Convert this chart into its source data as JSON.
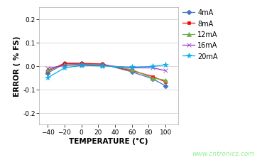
{
  "xlabel": "TEMPERATURE (°C)",
  "ylabel": "ERROR ( % FS)",
  "watermark": "www.cntronics.com",
  "xlim": [
    -50,
    115
  ],
  "ylim": [
    -0.25,
    0.25
  ],
  "xticks": [
    -40,
    -20,
    0,
    20,
    40,
    60,
    80,
    100
  ],
  "yticks": [
    -0.2,
    -0.1,
    0.0,
    0.1,
    0.2
  ],
  "series": [
    {
      "label": "4mA",
      "color": "#4472C4",
      "marker": "D",
      "markersize": 3.5,
      "x": [
        -40,
        -20,
        0,
        25,
        60,
        85,
        100
      ],
      "y": [
        -0.03,
        0.01,
        0.01,
        0.008,
        -0.025,
        -0.055,
        -0.085
      ]
    },
    {
      "label": "8mA",
      "color": "#FF0000",
      "marker": "s",
      "markersize": 3.5,
      "x": [
        -40,
        -20,
        0,
        25,
        60,
        85,
        100
      ],
      "y": [
        -0.022,
        0.012,
        0.012,
        0.008,
        -0.02,
        -0.045,
        -0.068
      ]
    },
    {
      "label": "12mA",
      "color": "#70AD47",
      "marker": "^",
      "markersize": 4.0,
      "x": [
        -40,
        -20,
        0,
        25,
        60,
        85,
        100
      ],
      "y": [
        -0.016,
        0.005,
        0.008,
        0.005,
        -0.015,
        -0.052,
        -0.06
      ]
    },
    {
      "label": "16mA",
      "color": "#9933CC",
      "marker": "x",
      "markersize": 4.5,
      "x": [
        -40,
        -20,
        0,
        25,
        60,
        85,
        100
      ],
      "y": [
        -0.01,
        0.002,
        0.005,
        0.003,
        -0.008,
        -0.008,
        -0.02
      ]
    },
    {
      "label": "20mA",
      "color": "#00B0F0",
      "marker": "*",
      "markersize": 5.5,
      "x": [
        -40,
        -20,
        0,
        25,
        60,
        85,
        100
      ],
      "y": [
        -0.05,
        -0.008,
        0.002,
        0.0,
        -0.005,
        -0.002,
        0.005
      ]
    }
  ],
  "background_color": "#FFFFFF",
  "plot_bg_color": "#FFFFFF",
  "grid_color": "#CCCCCC",
  "watermark_color": "#90EE90",
  "legend_fontsize": 7.0,
  "axis_label_fontsize": 7.5,
  "tick_fontsize": 6.5
}
